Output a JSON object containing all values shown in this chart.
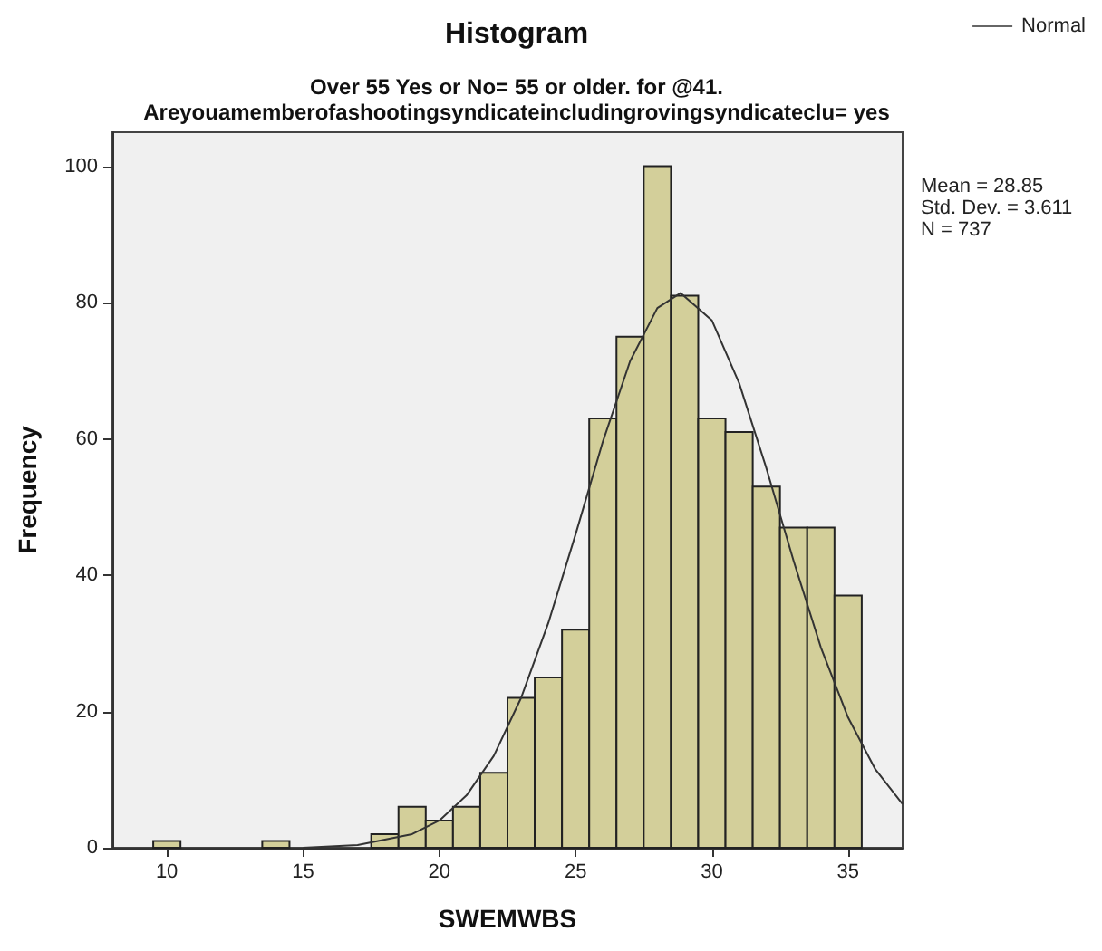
{
  "chart_data": {
    "type": "histogram",
    "title": "Histogram",
    "subtitle": "Over 55 Yes or No= 55 or older. for @41.\nAreyouamemberofashootingsyndicateincludingrovingsyndicateclu= yes",
    "xlabel": "SWEMWBS",
    "ylabel": "Frequency",
    "xlim": [
      8,
      37
    ],
    "xticks": [
      10,
      15,
      20,
      25,
      30,
      35
    ],
    "ylim": [
      0,
      105
    ],
    "yticks": [
      0,
      20,
      40,
      60,
      80,
      100
    ],
    "grid": false,
    "legend": "top right",
    "marker": "none",
    "annotations": [
      "Mean = 28.85",
      "Std. Dev. = 3.611",
      "N = 737"
    ],
    "series": [
      {
        "color": "#d3cf9a",
        "bins": [
          9.5,
          10.5,
          11.5,
          12.5,
          13.5,
          14.5,
          15.5,
          16.5,
          17.5,
          18.5,
          19.5,
          20.5,
          21.5,
          22.5,
          23.5,
          24.5,
          25.5,
          26.5,
          27.5,
          28.5,
          29.5,
          30.5,
          31.5,
          32.5,
          33.5,
          34.5,
          35.5
        ],
        "values": [
          1,
          0,
          0,
          0,
          1,
          0,
          0,
          0,
          2,
          6,
          4,
          6,
          11,
          22,
          25,
          32,
          63,
          75,
          100,
          81,
          63,
          61,
          53,
          47,
          47,
          37
        ]
      },
      {
        "type": "line",
        "name": "Normal",
        "color": "#333333",
        "x": [
          15,
          17,
          19,
          20,
          21,
          22,
          23,
          24,
          25,
          26,
          27,
          28,
          28.85,
          30,
          31,
          32,
          33,
          34,
          35,
          36,
          37
        ],
        "values": [
          0,
          0.4,
          2,
          4,
          7.7,
          13.5,
          22,
          33,
          46,
          59.6,
          71.4,
          79.2,
          81.4,
          77.4,
          68.2,
          55.7,
          42.1,
          29.4,
          19.1,
          11.5,
          6.4
        ]
      }
    ]
  }
}
